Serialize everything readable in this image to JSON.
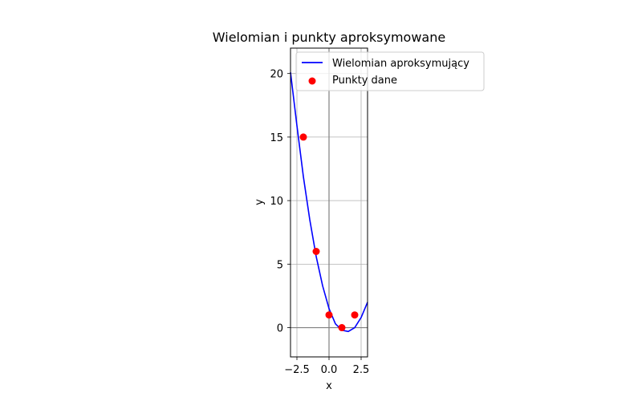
{
  "chart_data": {
    "type": "line",
    "title": "Wielomian i punkty aproksymowane",
    "xlabel": "x",
    "ylabel": "y",
    "xlim": [
      -3,
      3
    ],
    "ylim": [
      -2.3,
      22
    ],
    "grid": true,
    "legend_position": "top-right",
    "x_ticks": [
      -2.5,
      0.0,
      2.5
    ],
    "x_tick_labels": [
      "−2.5",
      "0.0",
      "2.5"
    ],
    "y_ticks": [
      0,
      5,
      10,
      15,
      20
    ],
    "y_tick_labels": [
      "0",
      "5",
      "10",
      "15",
      "20"
    ],
    "series": [
      {
        "name": "Wielomian aproksymujący",
        "kind": "line",
        "color": "#0000ff",
        "x": [
          -3.0,
          -2.5,
          -2.0,
          -1.5,
          -1.0,
          -0.5,
          0.0,
          0.5,
          1.0,
          1.5,
          2.0,
          2.5,
          3.0
        ],
        "values": [
          20.1,
          15.9,
          11.9,
          8.5,
          5.6,
          3.3,
          1.5,
          0.3,
          -0.2,
          -0.3,
          0.0,
          0.8,
          2.0
        ]
      },
      {
        "name": "Punkty dane",
        "kind": "scatter",
        "color": "#ff0000",
        "x": [
          -2,
          -1,
          0,
          1,
          2
        ],
        "values": [
          15,
          6,
          1,
          0,
          1
        ]
      }
    ]
  }
}
